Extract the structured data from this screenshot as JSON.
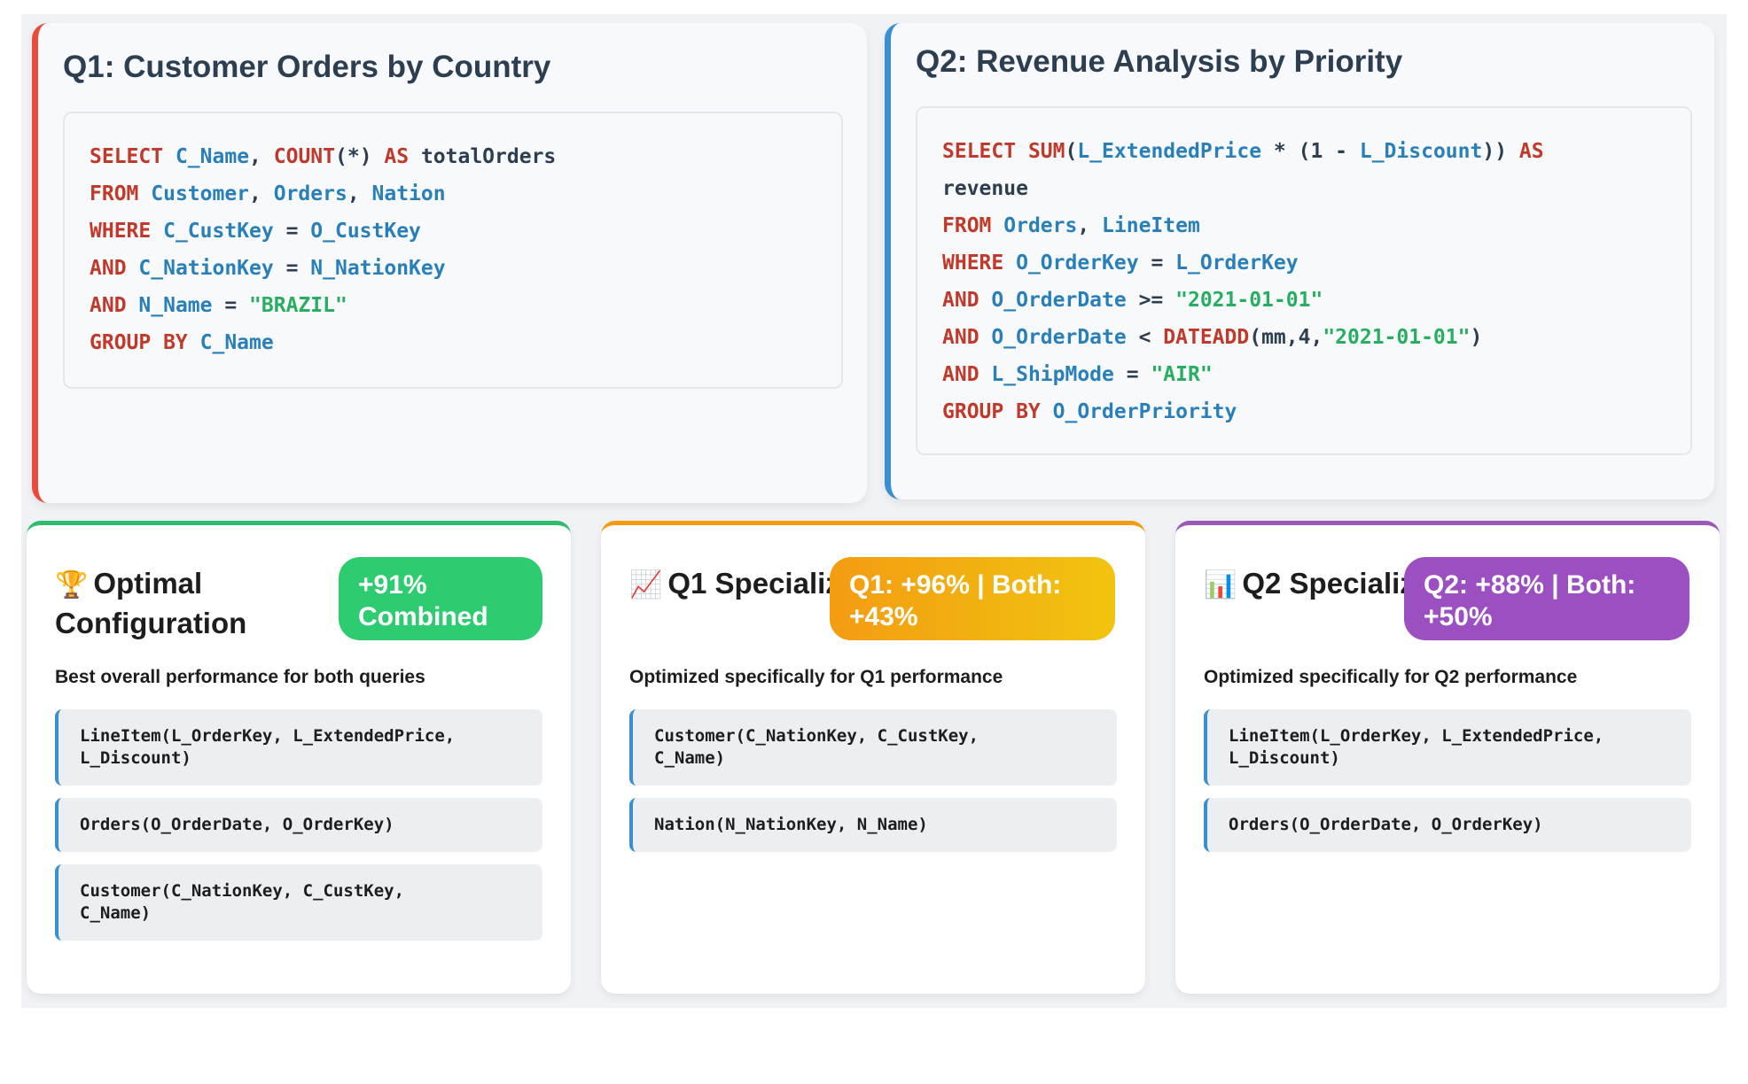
{
  "q1": {
    "title": "Q1: Customer Orders by Country",
    "code": [
      [
        [
          "kw",
          "SELECT"
        ],
        [
          "op",
          " "
        ],
        [
          "id",
          "C_Name"
        ],
        [
          "op",
          ", "
        ],
        [
          "kw",
          "COUNT"
        ],
        [
          "op",
          "(*) "
        ],
        [
          "kw",
          "AS"
        ],
        [
          "op",
          " totalOrders"
        ]
      ],
      [
        [
          "kw",
          "FROM"
        ],
        [
          "op",
          " "
        ],
        [
          "id",
          "Customer"
        ],
        [
          "op",
          ", "
        ],
        [
          "id",
          "Orders"
        ],
        [
          "op",
          ", "
        ],
        [
          "id",
          "Nation"
        ]
      ],
      [
        [
          "kw",
          "WHERE"
        ],
        [
          "op",
          " "
        ],
        [
          "id",
          "C_CustKey"
        ],
        [
          "op",
          " = "
        ],
        [
          "id",
          "O_CustKey"
        ]
      ],
      [
        [
          "kw",
          "AND"
        ],
        [
          "op",
          " "
        ],
        [
          "id",
          "C_NationKey"
        ],
        [
          "op",
          " = "
        ],
        [
          "id",
          "N_NationKey"
        ]
      ],
      [
        [
          "kw",
          "AND"
        ],
        [
          "op",
          " "
        ],
        [
          "id",
          "N_Name"
        ],
        [
          "op",
          " = "
        ],
        [
          "str",
          "\"BRAZIL\""
        ]
      ],
      [
        [
          "kw",
          "GROUP BY"
        ],
        [
          "op",
          " "
        ],
        [
          "id",
          "C_Name"
        ]
      ]
    ]
  },
  "q2": {
    "title": "Q2: Revenue Analysis by Priority",
    "code": [
      [
        [
          "kw",
          "SELECT"
        ],
        [
          "op",
          " "
        ],
        [
          "kw",
          "SUM"
        ],
        [
          "op",
          "("
        ],
        [
          "id",
          "L_ExtendedPrice"
        ],
        [
          "op",
          " * (1 - "
        ],
        [
          "id",
          "L_Discount"
        ],
        [
          "op",
          ")) "
        ],
        [
          "kw",
          "AS"
        ]
      ],
      [
        [
          "op",
          "revenue"
        ]
      ],
      [
        [
          "kw",
          "FROM"
        ],
        [
          "op",
          " "
        ],
        [
          "id",
          "Orders"
        ],
        [
          "op",
          ", "
        ],
        [
          "id",
          "LineItem"
        ]
      ],
      [
        [
          "kw",
          "WHERE"
        ],
        [
          "op",
          " "
        ],
        [
          "id",
          "O_OrderKey"
        ],
        [
          "op",
          " = "
        ],
        [
          "id",
          "L_OrderKey"
        ]
      ],
      [
        [
          "kw",
          "AND"
        ],
        [
          "op",
          " "
        ],
        [
          "id",
          "O_OrderDate"
        ],
        [
          "op",
          " >= "
        ],
        [
          "str",
          "\"2021-01-01\""
        ]
      ],
      [
        [
          "kw",
          "AND"
        ],
        [
          "op",
          " "
        ],
        [
          "id",
          "O_OrderDate"
        ],
        [
          "op",
          " < "
        ],
        [
          "kw",
          "DATEADD"
        ],
        [
          "op",
          "(mm,4,"
        ],
        [
          "str",
          "\"2021-01-01\""
        ],
        [
          "op",
          ")"
        ]
      ],
      [
        [
          "kw",
          "AND"
        ],
        [
          "op",
          " "
        ],
        [
          "id",
          "L_ShipMode"
        ],
        [
          "op",
          " = "
        ],
        [
          "str",
          "\"AIR\""
        ]
      ],
      [
        [
          "kw",
          "GROUP BY"
        ],
        [
          "op",
          " "
        ],
        [
          "id",
          "O_OrderPriority"
        ]
      ]
    ]
  },
  "configs": {
    "optimal": {
      "icon": "🏆",
      "icon_name": "trophy-icon",
      "title": "Optimal Configuration",
      "badge": "+91% Combined",
      "description": "Best overall performance for both queries",
      "indexes": [
        "LineItem(L_OrderKey, L_ExtendedPrice,\nL_Discount)",
        "Orders(O_OrderDate, O_OrderKey)",
        "Customer(C_NationKey, C_CustKey,\nC_Name)"
      ]
    },
    "q1": {
      "icon": "📈",
      "icon_name": "chart-increasing-icon",
      "title": "Q1 Specialized",
      "badge": "Q1: +96% | Both: +43%",
      "description": "Optimized specifically for Q1 performance",
      "indexes": [
        "Customer(C_NationKey, C_CustKey,\nC_Name)",
        "Nation(N_NationKey, N_Name)"
      ]
    },
    "q2": {
      "icon": "📊",
      "icon_name": "bar-chart-icon",
      "title": "Q2 Specialized",
      "badge": "Q2: +88% | Both: +50%",
      "description": "Optimized specifically for Q2 performance",
      "indexes": [
        "LineItem(L_OrderKey, L_ExtendedPrice,\nL_Discount)",
        "Orders(O_OrderDate, O_OrderKey)"
      ]
    }
  },
  "colors": {
    "q1_accent": "#e74c3c",
    "q2_accent": "#3a8fd0",
    "optimal_accent": "#2ebd6b",
    "q1_spec_accent": "#f39c12",
    "q2_spec_accent": "#9b59b6"
  }
}
